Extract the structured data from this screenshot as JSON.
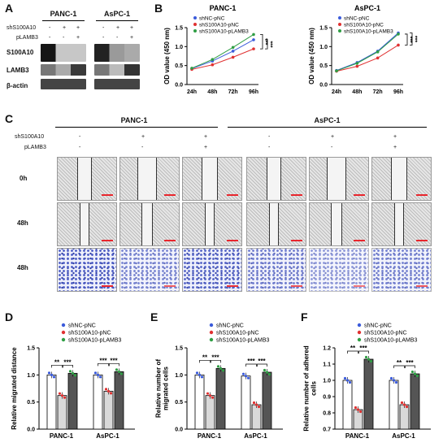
{
  "panels": {
    "A": "A",
    "B": "B",
    "C": "C",
    "D": "D",
    "E": "E",
    "F": "F"
  },
  "panelA": {
    "groups": [
      "PANC-1",
      "AsPC-1"
    ],
    "rows": [
      {
        "label": "shS100A10",
        "marks": [
          "-",
          "+",
          "+"
        ]
      },
      {
        "label": "pLAMB3",
        "marks": [
          "-",
          "-",
          "+"
        ]
      }
    ],
    "blots": [
      "S100A10",
      "LAMB3",
      "β-actin"
    ]
  },
  "panelC": {
    "groups": [
      "PANC-1",
      "AsPC-1"
    ],
    "rows": [
      {
        "label": "shS100A10",
        "marks": [
          "-",
          "+",
          "+",
          "-",
          "+",
          "+"
        ]
      },
      {
        "label": "pLAMB3",
        "marks": [
          "-",
          "-",
          "+",
          "-",
          "-",
          "+"
        ]
      }
    ],
    "timepoints": [
      "0h",
      "48h",
      "48h"
    ]
  },
  "chart_data": [
    {
      "id": "B-left",
      "type": "line",
      "title": "PANC-1",
      "ylabel": "OD value (450 nm)",
      "categories": [
        "24h",
        "48h",
        "72h",
        "96h"
      ],
      "ylim": [
        0,
        1.5
      ],
      "yticks": [
        "0.0",
        "0.5",
        "1.0",
        "1.5"
      ],
      "series": [
        {
          "name": "shNC-pNC",
          "color": "#3b5bdb",
          "values": [
            0.42,
            0.62,
            0.88,
            1.18
          ]
        },
        {
          "name": "shS100A10-pNC",
          "color": "#e03131",
          "values": [
            0.4,
            0.52,
            0.72,
            0.94
          ]
        },
        {
          "name": "shS100A10-pLAMB3",
          "color": "#2f9e44",
          "values": [
            0.43,
            0.66,
            0.98,
            1.32
          ]
        }
      ],
      "significance": [
        "***",
        "***"
      ]
    },
    {
      "id": "B-right",
      "type": "line",
      "title": "AsPC-1",
      "ylabel": "OD value (450 nm)",
      "categories": [
        "24h",
        "48h",
        "72h",
        "96h"
      ],
      "ylim": [
        0,
        1.5
      ],
      "yticks": [
        "0.0",
        "0.5",
        "1.0",
        "1.5"
      ],
      "series": [
        {
          "name": "shNC-pNC",
          "color": "#3b5bdb",
          "values": [
            0.37,
            0.58,
            0.88,
            1.36
          ]
        },
        {
          "name": "shS100A10-pNC",
          "color": "#e03131",
          "values": [
            0.35,
            0.48,
            0.7,
            1.04
          ]
        },
        {
          "name": "shS100A10-pLAMB3",
          "color": "#2f9e44",
          "values": [
            0.36,
            0.56,
            0.86,
            1.33
          ]
        }
      ],
      "significance": [
        "***",
        "***"
      ]
    },
    {
      "id": "D",
      "type": "bar",
      "ylabel": "Relative migrated distance",
      "categories": [
        "PANC-1",
        "AsPC-1"
      ],
      "ylim": [
        0,
        1.5
      ],
      "yticks": [
        "0.0",
        "0.5",
        "1.0",
        "1.5"
      ],
      "series": [
        {
          "name": "shNC-pNC",
          "color": "#3b5bdb",
          "fill": "#ffffff",
          "values": [
            1.0,
            1.0
          ]
        },
        {
          "name": "shS100A10-pNC",
          "color": "#e03131",
          "fill": "#d9d9d9",
          "values": [
            0.62,
            0.7
          ]
        },
        {
          "name": "shS100A10-pLAMB3",
          "color": "#2f9e44",
          "fill": "#555555",
          "values": [
            1.03,
            1.06
          ]
        }
      ],
      "significance": [
        [
          "**",
          "***"
        ],
        [
          "***",
          "***"
        ]
      ]
    },
    {
      "id": "E",
      "type": "bar",
      "ylabel": "Relative number of migrated cells",
      "categories": [
        "PANC-1",
        "AsPC-1"
      ],
      "ylim": [
        0,
        1.5
      ],
      "yticks": [
        "0.0",
        "0.5",
        "1.0",
        "1.5"
      ],
      "series": [
        {
          "name": "shNC-pNC",
          "color": "#3b5bdb",
          "fill": "#ffffff",
          "values": [
            1.0,
            0.98
          ]
        },
        {
          "name": "shS100A10-pNC",
          "color": "#e03131",
          "fill": "#d9d9d9",
          "values": [
            0.62,
            0.45
          ]
        },
        {
          "name": "shS100A10-pLAMB3",
          "color": "#2f9e44",
          "fill": "#555555",
          "values": [
            1.12,
            1.05
          ]
        }
      ],
      "significance": [
        [
          "**",
          "***"
        ],
        [
          "***",
          "***"
        ]
      ]
    },
    {
      "id": "F",
      "type": "bar",
      "ylabel": "Relative number of adhered cells",
      "categories": [
        "PANC-1",
        "AsPC-1"
      ],
      "ylim": [
        0.7,
        1.2
      ],
      "yticks": [
        "0.7",
        "0.8",
        "0.9",
        "1.0",
        "1.1",
        "1.2"
      ],
      "series": [
        {
          "name": "shNC-pNC",
          "color": "#3b5bdb",
          "fill": "#ffffff",
          "values": [
            1.0,
            1.0
          ]
        },
        {
          "name": "shS100A10-pNC",
          "color": "#e03131",
          "fill": "#d9d9d9",
          "values": [
            0.82,
            0.85
          ]
        },
        {
          "name": "shS100A10-pLAMB3",
          "color": "#2f9e44",
          "fill": "#555555",
          "values": [
            1.13,
            1.04
          ]
        }
      ],
      "significance": [
        [
          "**",
          "***"
        ],
        [
          "**",
          "***"
        ]
      ]
    }
  ]
}
